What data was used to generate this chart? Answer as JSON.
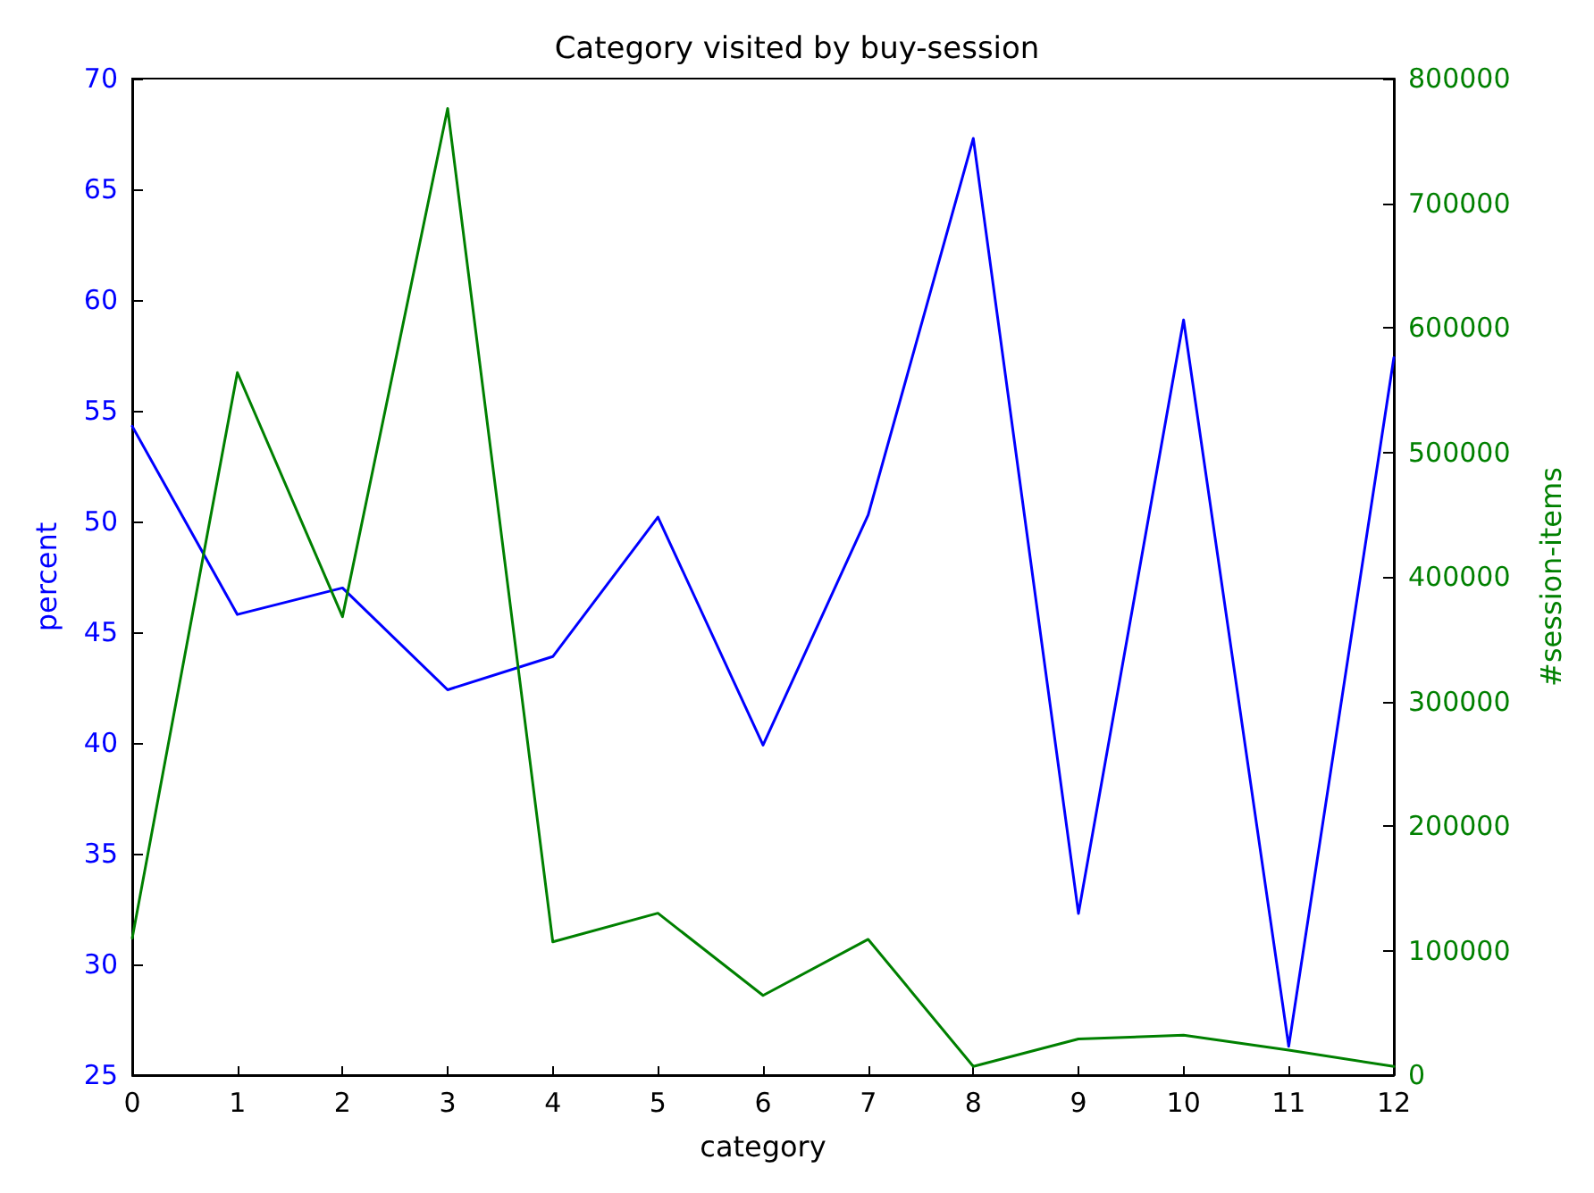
{
  "chart_data": {
    "type": "line",
    "title": "Category visited by buy-session",
    "xlabel": "category",
    "ylabel": "percent",
    "y2label": "#session-items",
    "x": [
      0,
      1,
      2,
      3,
      4,
      5,
      6,
      7,
      8,
      9,
      10,
      11,
      12
    ],
    "series": [
      {
        "color": "#0000ff",
        "values": [
          54.3,
          45.8,
          47.0,
          42.4,
          43.9,
          50.2,
          39.9,
          50.3,
          67.3,
          32.3,
          59.1,
          26.3,
          57.4
        ]
      },
      {
        "color": "#008000",
        "axis": "y2",
        "values": [
          110000,
          564000,
          368000,
          776000,
          107000,
          130000,
          64000,
          109000,
          7000,
          29000,
          32000,
          20000,
          7000
        ]
      }
    ],
    "xlim": [
      0,
      12
    ],
    "xticks": [
      0,
      1,
      2,
      3,
      4,
      5,
      6,
      7,
      8,
      9,
      10,
      11,
      12
    ],
    "ylim": [
      25,
      70
    ],
    "yticks": [
      25,
      30,
      35,
      40,
      45,
      50,
      55,
      60,
      65,
      70
    ],
    "y2lim": [
      0,
      800000
    ],
    "y2ticks": [
      0,
      100000,
      200000,
      300000,
      400000,
      500000,
      600000,
      700000,
      800000
    ],
    "grid": false,
    "marker": "none",
    "line_style": "solid"
  }
}
